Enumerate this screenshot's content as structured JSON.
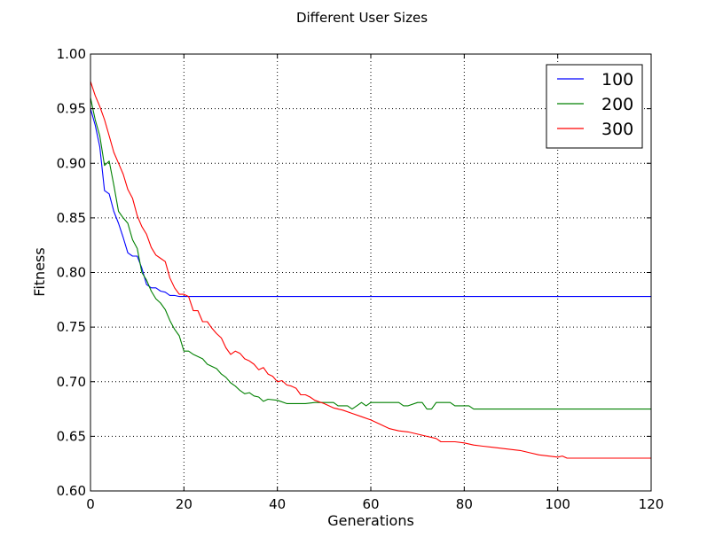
{
  "chart_data": {
    "type": "line",
    "title": "Different User Sizes",
    "xlabel": "Generations",
    "ylabel": "Fitness",
    "xlim": [
      0,
      120
    ],
    "ylim": [
      0.6,
      1.0
    ],
    "xticks": [
      0,
      20,
      40,
      60,
      80,
      100,
      120
    ],
    "xtick_labels": [
      "0",
      "20",
      "40",
      "60",
      "80",
      "100",
      "120"
    ],
    "yticks": [
      0.6,
      0.65,
      0.7,
      0.75,
      0.8,
      0.85,
      0.9,
      0.95,
      1.0
    ],
    "ytick_labels": [
      "0.60",
      "0.65",
      "0.70",
      "0.75",
      "0.80",
      "0.85",
      "0.90",
      "0.95",
      "1.00"
    ],
    "grid": true,
    "legend_position": "top-right",
    "series": [
      {
        "name": "100",
        "color": "#0000ff",
        "x": [
          0,
          1,
          2,
          3,
          4,
          5,
          6,
          7,
          8,
          9,
          10,
          11,
          12,
          13,
          14,
          15,
          16,
          17,
          18,
          19,
          20,
          21,
          120
        ],
        "y": [
          0.95,
          0.935,
          0.915,
          0.875,
          0.872,
          0.856,
          0.845,
          0.832,
          0.818,
          0.815,
          0.815,
          0.804,
          0.789,
          0.786,
          0.786,
          0.783,
          0.782,
          0.779,
          0.779,
          0.778,
          0.778,
          0.778,
          0.778
        ]
      },
      {
        "name": "200",
        "color": "#008000",
        "x": [
          0,
          1,
          2,
          3,
          4,
          5,
          6,
          7,
          8,
          9,
          10,
          11,
          12,
          13,
          14,
          15,
          16,
          17,
          18,
          19,
          20,
          21,
          22,
          23,
          24,
          25,
          26,
          27,
          28,
          29,
          30,
          31,
          32,
          33,
          34,
          35,
          36,
          37,
          38,
          40,
          42,
          44,
          46,
          48,
          50,
          52,
          53,
          55,
          56,
          57,
          58,
          59,
          60,
          62,
          64,
          66,
          67,
          68,
          70,
          71,
          72,
          73,
          74,
          76,
          77,
          78,
          80,
          81,
          82,
          85,
          90,
          100,
          110,
          120
        ],
        "y": [
          0.96,
          0.94,
          0.925,
          0.898,
          0.902,
          0.88,
          0.856,
          0.85,
          0.845,
          0.83,
          0.822,
          0.8,
          0.793,
          0.783,
          0.776,
          0.772,
          0.766,
          0.756,
          0.748,
          0.742,
          0.728,
          0.728,
          0.725,
          0.723,
          0.721,
          0.716,
          0.714,
          0.712,
          0.707,
          0.704,
          0.699,
          0.696,
          0.692,
          0.689,
          0.69,
          0.687,
          0.686,
          0.682,
          0.684,
          0.683,
          0.68,
          0.68,
          0.68,
          0.681,
          0.681,
          0.681,
          0.678,
          0.678,
          0.675,
          0.678,
          0.681,
          0.678,
          0.681,
          0.681,
          0.681,
          0.681,
          0.678,
          0.678,
          0.681,
          0.681,
          0.675,
          0.675,
          0.681,
          0.681,
          0.681,
          0.678,
          0.678,
          0.678,
          0.675,
          0.675,
          0.675,
          0.675,
          0.675,
          0.675
        ]
      },
      {
        "name": "300",
        "color": "#ff0000",
        "x": [
          0,
          1,
          2,
          3,
          4,
          5,
          6,
          7,
          8,
          9,
          10,
          11,
          12,
          13,
          14,
          15,
          16,
          17,
          18,
          19,
          20,
          21,
          22,
          23,
          24,
          25,
          26,
          27,
          28,
          29,
          30,
          31,
          32,
          33,
          34,
          35,
          36,
          37,
          38,
          39,
          40,
          41,
          42,
          43,
          44,
          45,
          46,
          47,
          48,
          50,
          52,
          54,
          56,
          58,
          60,
          62,
          64,
          66,
          68,
          70,
          72,
          74,
          75,
          76,
          78,
          80,
          82,
          84,
          86,
          88,
          90,
          92,
          94,
          96,
          98,
          100,
          101,
          102,
          104,
          110,
          120
        ],
        "y": [
          0.975,
          0.962,
          0.952,
          0.94,
          0.925,
          0.91,
          0.9,
          0.89,
          0.876,
          0.868,
          0.852,
          0.842,
          0.835,
          0.823,
          0.816,
          0.813,
          0.81,
          0.795,
          0.786,
          0.78,
          0.78,
          0.778,
          0.765,
          0.765,
          0.755,
          0.755,
          0.749,
          0.744,
          0.74,
          0.731,
          0.725,
          0.728,
          0.726,
          0.721,
          0.719,
          0.716,
          0.711,
          0.713,
          0.707,
          0.705,
          0.7,
          0.701,
          0.697,
          0.696,
          0.694,
          0.688,
          0.688,
          0.686,
          0.683,
          0.68,
          0.676,
          0.674,
          0.671,
          0.668,
          0.665,
          0.661,
          0.657,
          0.655,
          0.654,
          0.652,
          0.65,
          0.648,
          0.645,
          0.645,
          0.645,
          0.644,
          0.642,
          0.641,
          0.64,
          0.639,
          0.638,
          0.637,
          0.635,
          0.633,
          0.632,
          0.631,
          0.632,
          0.63,
          0.63,
          0.63,
          0.63
        ]
      }
    ]
  }
}
